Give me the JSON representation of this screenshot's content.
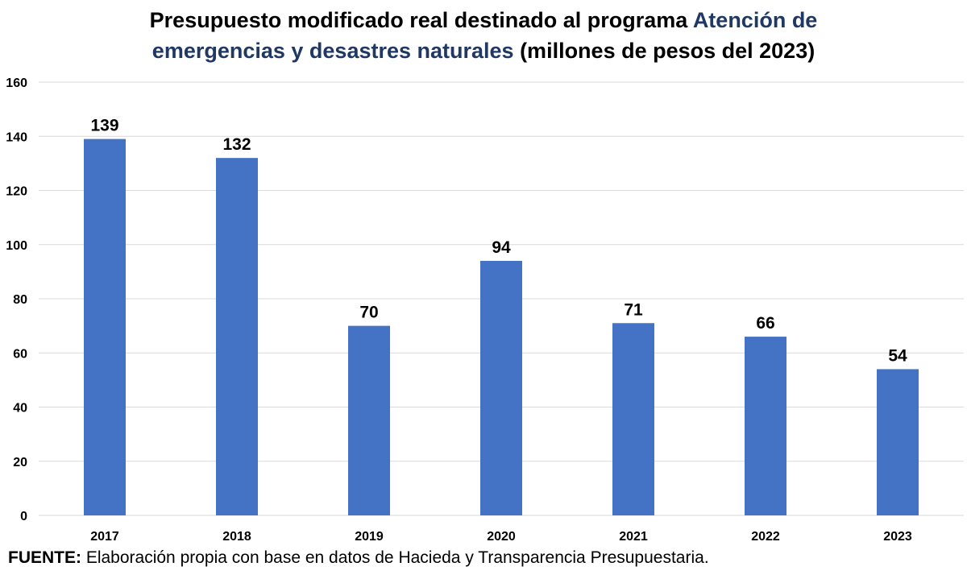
{
  "title": {
    "part1": "Presupuesto modificado real destinado al programa ",
    "part2": "Atención de",
    "part3": "emergencias y desastres naturales",
    "part4": " (millones de pesos del 2023)"
  },
  "source": {
    "label": "FUENTE:",
    "text": " Elaboración propia con base en datos de Hacieda y Transparencia Presupuestaria."
  },
  "colors": {
    "bar": "#4472c4",
    "title_accent": "#1f3864",
    "grid": "#d9d9d9",
    "text": "#000000"
  },
  "chart_data": {
    "type": "bar",
    "categories": [
      "2017",
      "2018",
      "2019",
      "2020",
      "2021",
      "2022",
      "2023"
    ],
    "values": [
      139,
      132,
      70,
      94,
      71,
      66,
      54
    ],
    "data_labels": [
      "139",
      "132",
      "70",
      "94",
      "71",
      "66",
      "54"
    ],
    "ylim": [
      0,
      160
    ],
    "yticks": [
      0,
      20,
      40,
      60,
      80,
      100,
      120,
      140,
      160
    ],
    "grid": true,
    "legend": "none"
  }
}
